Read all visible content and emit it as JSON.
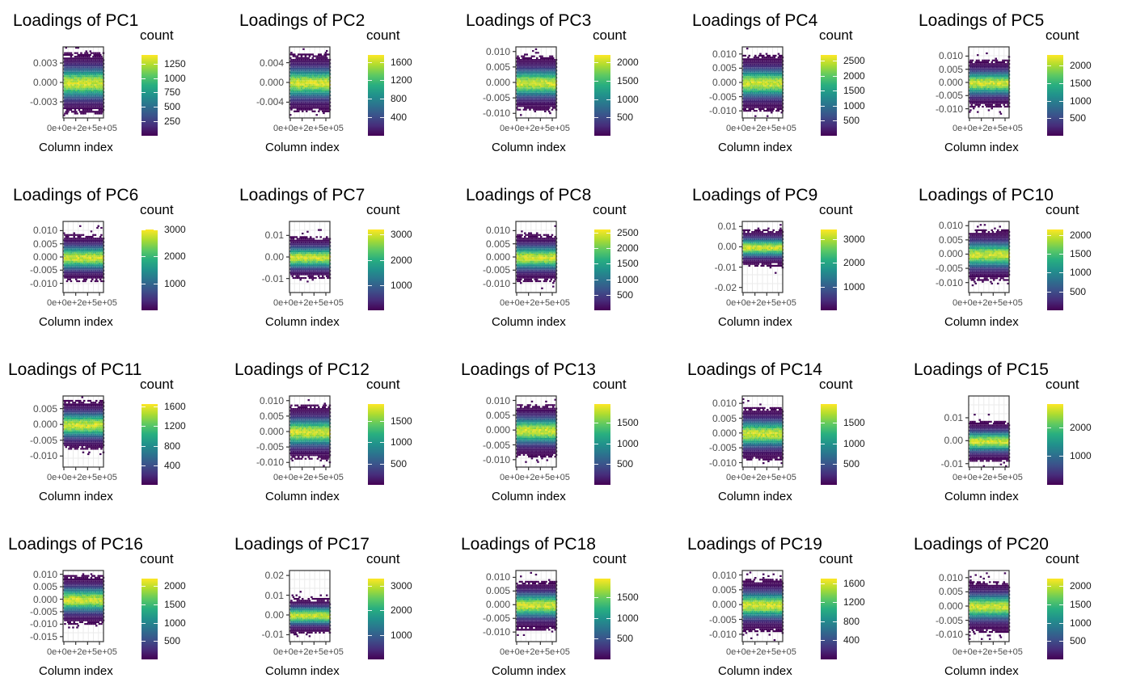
{
  "colorscale": [
    "#440154",
    "#472d7b",
    "#3b528b",
    "#2c728e",
    "#21918c",
    "#28ae80",
    "#5ec962",
    "#addc30",
    "#fde725"
  ],
  "common": {
    "xlabel": "Column index",
    "legend_title": "count",
    "xtick_text": "0e+0e+2e+5e+05"
  },
  "chart_data": [
    {
      "type": "heatmap",
      "title": "Loadings of PC1",
      "yticks": [
        "0.003",
        "0.000",
        "-0.003"
      ],
      "ylim": [
        -0.0055,
        0.0055
      ],
      "spread": 0.0048,
      "legend_ticks": [
        "1250",
        "1000",
        "750",
        "500",
        "250"
      ],
      "count_max": 1400
    },
    {
      "type": "heatmap",
      "title": "Loadings of PC2",
      "yticks": [
        "0.004",
        "0.000",
        "-0.004"
      ],
      "ylim": [
        -0.0072,
        0.0072
      ],
      "spread": 0.006,
      "legend_ticks": [
        "1600",
        "1200",
        "800",
        "400"
      ],
      "count_max": 1750
    },
    {
      "type": "heatmap",
      "title": "Loadings of PC3",
      "yticks": [
        "0.010",
        "0.005",
        "0.000",
        "-0.005",
        "-0.010"
      ],
      "ylim": [
        -0.0115,
        0.0115
      ],
      "spread": 0.009,
      "legend_ticks": [
        "2000",
        "1500",
        "1000",
        "500"
      ],
      "count_max": 2200
    },
    {
      "type": "heatmap",
      "title": "Loadings of PC4",
      "yticks": [
        "0.010",
        "0.005",
        "0.000",
        "-0.005",
        "-0.010"
      ],
      "ylim": [
        -0.0125,
        0.0125
      ],
      "spread": 0.01,
      "legend_ticks": [
        "2500",
        "2000",
        "1500",
        "1000",
        "500"
      ],
      "count_max": 2700
    },
    {
      "type": "heatmap",
      "title": "Loadings of PC5",
      "yticks": [
        "0.010",
        "0.005",
        "0.000",
        "-0.005",
        "-0.010"
      ],
      "ylim": [
        -0.0135,
        0.0135
      ],
      "spread": 0.009,
      "legend_ticks": [
        "2000",
        "1500",
        "1000",
        "500"
      ],
      "count_max": 2300
    },
    {
      "type": "heatmap",
      "title": "Loadings of PC6",
      "yticks": [
        "0.010",
        "0.005",
        "0.000",
        "-0.005",
        "-0.010"
      ],
      "ylim": [
        -0.0135,
        0.0135
      ],
      "spread": 0.009,
      "legend_ticks": [
        "3000",
        "2000",
        "1000"
      ],
      "count_max": 3000
    },
    {
      "type": "heatmap",
      "title": "Loadings of PC7",
      "yticks": [
        "0.01",
        "0.00",
        "-0.01"
      ],
      "ylim": [
        -0.0165,
        0.0165
      ],
      "spread": 0.01,
      "legend_ticks": [
        "3000",
        "2000",
        "1000"
      ],
      "count_max": 3200
    },
    {
      "type": "heatmap",
      "title": "Loadings of PC8",
      "yticks": [
        "0.010",
        "0.005",
        "0.000",
        "-0.005",
        "-0.010"
      ],
      "ylim": [
        -0.0135,
        0.0135
      ],
      "spread": 0.009,
      "legend_ticks": [
        "2500",
        "2000",
        "1500",
        "1000",
        "500"
      ],
      "count_max": 2600
    },
    {
      "type": "heatmap",
      "title": "Loadings of PC9",
      "yticks": [
        "0.01",
        "0.00",
        "-0.01",
        "-0.02"
      ],
      "ylim": [
        -0.0225,
        0.0125
      ],
      "spread": 0.009,
      "legend_ticks": [
        "3000",
        "2000",
        "1000"
      ],
      "count_max": 3400
    },
    {
      "type": "heatmap",
      "title": "Loadings of PC10",
      "yticks": [
        "0.010",
        "0.005",
        "0.000",
        "-0.005",
        "-0.010"
      ],
      "ylim": [
        -0.0135,
        0.0115
      ],
      "spread": 0.009,
      "legend_ticks": [
        "2000",
        "1500",
        "1000",
        "500"
      ],
      "count_max": 2150
    },
    {
      "type": "heatmap",
      "title": "Loadings of PC11",
      "yticks": [
        "0.005",
        "0.000",
        "-0.005",
        "-0.010"
      ],
      "ylim": [
        -0.0135,
        0.009
      ],
      "spread": 0.008,
      "legend_ticks": [
        "1600",
        "1200",
        "800",
        "400"
      ],
      "count_max": 1650
    },
    {
      "type": "heatmap",
      "title": "Loadings of PC12",
      "yticks": [
        "0.010",
        "0.005",
        "0.000",
        "-0.005",
        "-0.010"
      ],
      "ylim": [
        -0.0115,
        0.0115
      ],
      "spread": 0.009,
      "legend_ticks": [
        "1500",
        "1000",
        "500"
      ],
      "count_max": 1900
    },
    {
      "type": "heatmap",
      "title": "Loadings of PC13",
      "yticks": [
        "0.010",
        "0.005",
        "0.000",
        "-0.005",
        "-0.010"
      ],
      "ylim": [
        -0.0125,
        0.0115
      ],
      "spread": 0.009,
      "legend_ticks": [
        "1500",
        "1000",
        "500"
      ],
      "count_max": 1950
    },
    {
      "type": "heatmap",
      "title": "Loadings of PC14",
      "yticks": [
        "0.010",
        "0.005",
        "0.000",
        "-0.005",
        "-0.010"
      ],
      "ylim": [
        -0.0115,
        0.0125
      ],
      "spread": 0.009,
      "legend_ticks": [
        "1500",
        "1000",
        "500"
      ],
      "count_max": 1950
    },
    {
      "type": "heatmap",
      "title": "Loadings of PC15",
      "yticks": [
        "0.01",
        "0.00",
        "-0.01"
      ],
      "ylim": [
        -0.0115,
        0.0195
      ],
      "spread": 0.009,
      "legend_ticks": [
        "2000",
        "1000"
      ],
      "count_max": 2800
    },
    {
      "type": "heatmap",
      "title": "Loadings of PC16",
      "yticks": [
        "0.010",
        "0.005",
        "0.000",
        "-0.005",
        "-0.010",
        "-0.015"
      ],
      "ylim": [
        -0.017,
        0.0115
      ],
      "spread": 0.01,
      "legend_ticks": [
        "2000",
        "1500",
        "1000",
        "500"
      ],
      "count_max": 2200
    },
    {
      "type": "heatmap",
      "title": "Loadings of PC17",
      "yticks": [
        "0.02",
        "0.01",
        "0.00",
        "-0.01"
      ],
      "ylim": [
        -0.0135,
        0.0225
      ],
      "spread": 0.009,
      "legend_ticks": [
        "3000",
        "2000",
        "1000"
      ],
      "count_max": 3300
    },
    {
      "type": "heatmap",
      "title": "Loadings of PC18",
      "yticks": [
        "0.010",
        "0.005",
        "0.000",
        "-0.005",
        "-0.010"
      ],
      "ylim": [
        -0.0135,
        0.0125
      ],
      "spread": 0.009,
      "legend_ticks": [
        "1500",
        "1000",
        "500"
      ],
      "count_max": 1950
    },
    {
      "type": "heatmap",
      "title": "Loadings of PC19",
      "yticks": [
        "0.010",
        "0.005",
        "0.000",
        "-0.005",
        "-0.010"
      ],
      "ylim": [
        -0.0125,
        0.0115
      ],
      "spread": 0.009,
      "legend_ticks": [
        "1600",
        "1200",
        "800",
        "400"
      ],
      "count_max": 1700
    },
    {
      "type": "heatmap",
      "title": "Loadings of PC20",
      "yticks": [
        "0.010",
        "0.005",
        "0.000",
        "-0.005",
        "-0.010"
      ],
      "ylim": [
        -0.0125,
        0.0125
      ],
      "spread": 0.009,
      "legend_ticks": [
        "2000",
        "1500",
        "1000",
        "500"
      ],
      "count_max": 2200
    }
  ]
}
